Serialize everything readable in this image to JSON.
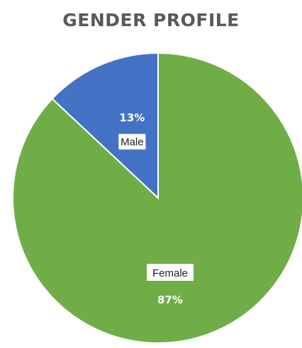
{
  "chart_data": {
    "type": "pie",
    "title": "GENDER PROFILE",
    "slices": [
      {
        "name": "Male",
        "value": 13,
        "pct_label": "13%",
        "color": "#4472c4"
      },
      {
        "name": "Female",
        "value": 87,
        "pct_label": "87%",
        "color": "#70ad47"
      }
    ],
    "start_angle_deg": 0,
    "direction": "counterclockwise",
    "legend": "none"
  }
}
